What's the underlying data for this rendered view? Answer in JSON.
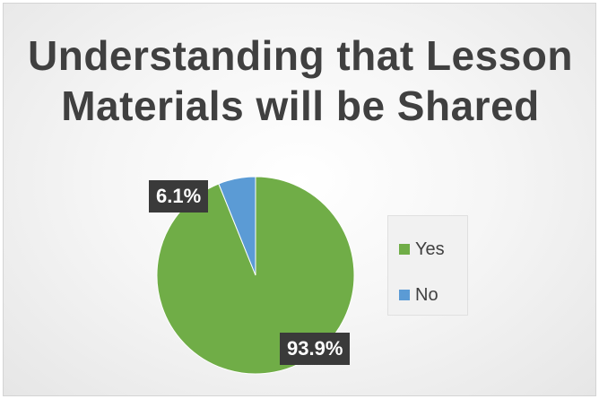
{
  "chart_data": {
    "type": "pie",
    "title_lines": [
      "Understanding that Lesson",
      "Materials will be Shared"
    ],
    "categories": [
      "Yes",
      "No"
    ],
    "values": [
      93.9,
      6.1
    ],
    "data_labels": [
      "93.9%",
      "6.1%"
    ],
    "colors": [
      "#70ad47",
      "#5b9bd5"
    ],
    "legend_position": "right"
  }
}
